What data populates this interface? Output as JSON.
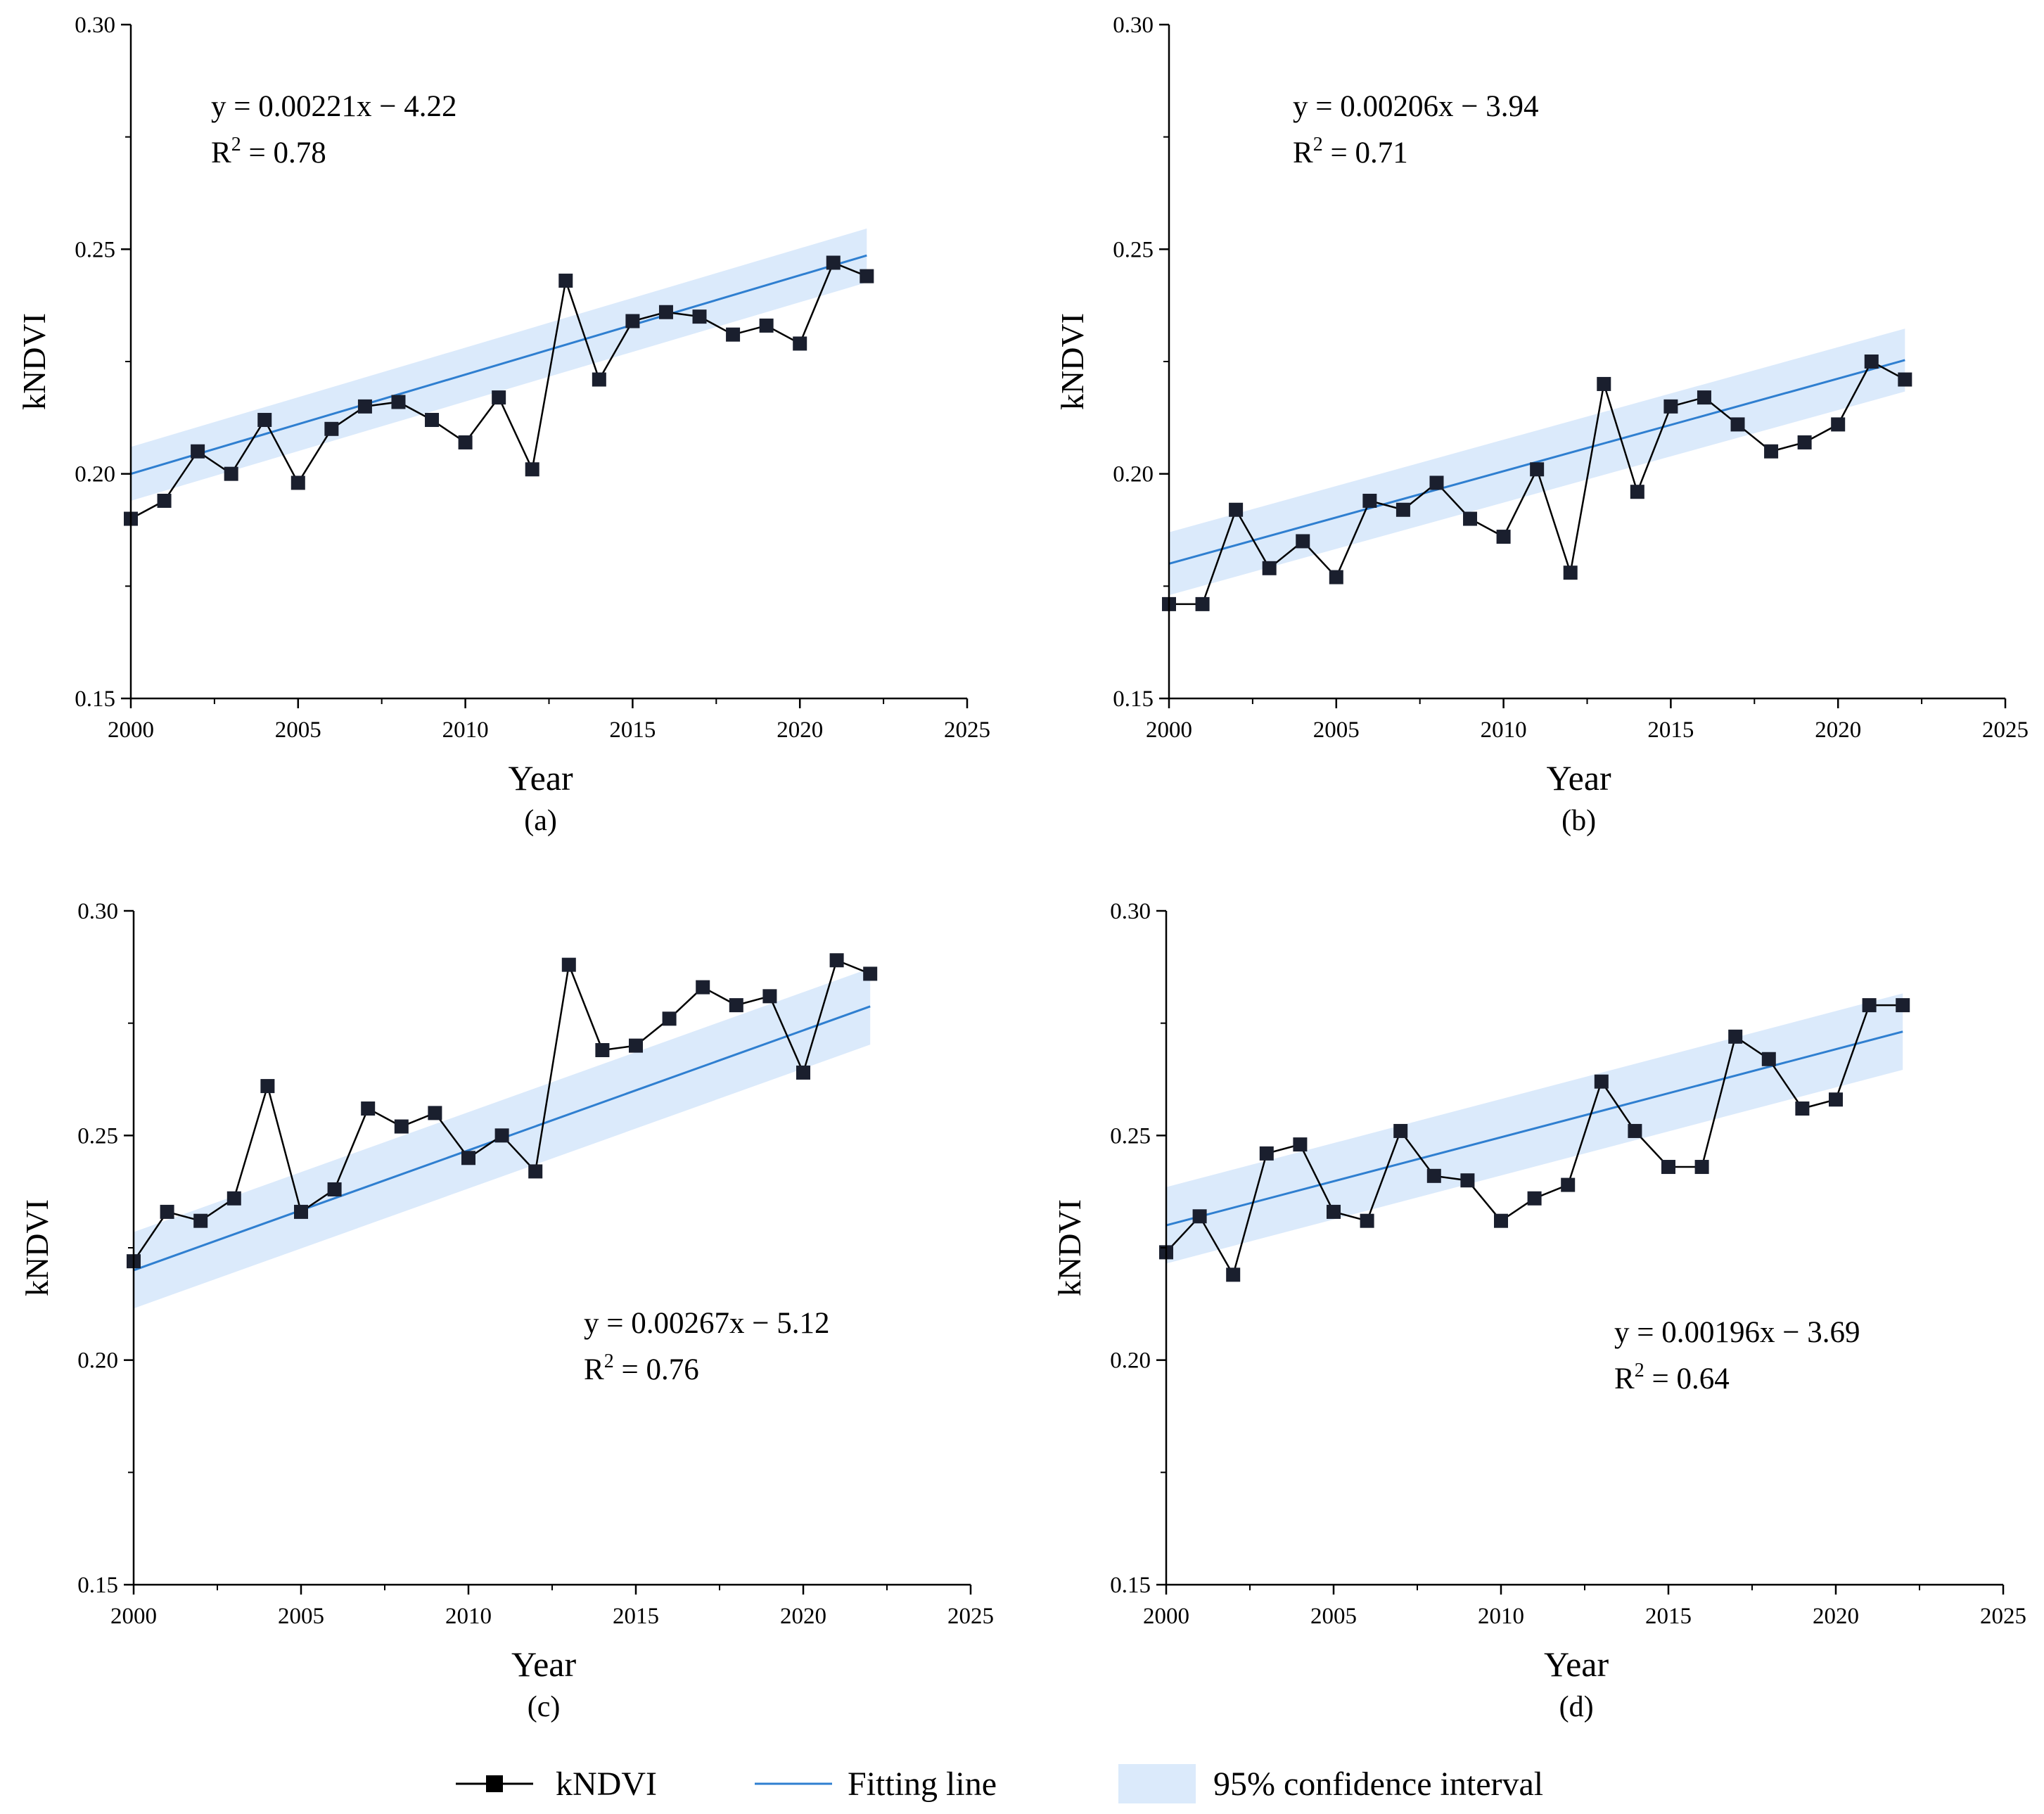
{
  "chart_data": [
    {
      "type": "line",
      "panel": "(a)",
      "title": "",
      "xlabel": "Year",
      "ylabel": "kNDVI",
      "xlim": [
        2000,
        2025
      ],
      "ylim": [
        0.15,
        0.3
      ],
      "xticks": [
        "2000",
        "2005",
        "2010",
        "2015",
        "2020",
        "2025"
      ],
      "yticks": [
        "0.15",
        "0.20",
        "0.25",
        "0.30"
      ],
      "x": [
        2000,
        2001,
        2002,
        2003,
        2004,
        2005,
        2006,
        2007,
        2008,
        2009,
        2010,
        2011,
        2012,
        2013,
        2014,
        2015,
        2016,
        2017,
        2018,
        2019,
        2020,
        2021,
        2022
      ],
      "values": [
        0.19,
        0.194,
        0.205,
        0.2,
        0.212,
        0.198,
        0.21,
        0.215,
        0.216,
        0.212,
        0.207,
        0.217,
        0.201,
        0.243,
        0.221,
        0.234,
        0.236,
        0.235,
        0.231,
        0.233,
        0.229,
        0.247,
        0.244
      ],
      "fit": {
        "slope": 0.00221,
        "intercept": -4.22,
        "ci_half_width_start": 0.006,
        "ci_half_width_end": 0.006
      },
      "equation": "y = 0.00221x − 4.22",
      "r2_prefix": "R",
      "r2_sup": "2",
      "r2_value": " = 0.78",
      "annotation_position": "top-left"
    },
    {
      "type": "line",
      "panel": "(b)",
      "title": "",
      "xlabel": "Year",
      "ylabel": "kNDVI",
      "xlim": [
        2000,
        2025
      ],
      "ylim": [
        0.15,
        0.3
      ],
      "xticks": [
        "2000",
        "2005",
        "2010",
        "2015",
        "2020",
        "2025"
      ],
      "yticks": [
        "0.15",
        "0.20",
        "0.25",
        "0.30"
      ],
      "x": [
        2000,
        2001,
        2002,
        2003,
        2004,
        2005,
        2006,
        2007,
        2008,
        2009,
        2010,
        2011,
        2012,
        2013,
        2014,
        2015,
        2016,
        2017,
        2018,
        2019,
        2020,
        2021,
        2022
      ],
      "values": [
        0.171,
        0.171,
        0.192,
        0.179,
        0.185,
        0.177,
        0.194,
        0.192,
        0.198,
        0.19,
        0.186,
        0.201,
        0.178,
        0.22,
        0.196,
        0.215,
        0.217,
        0.211,
        0.205,
        0.207,
        0.211,
        0.225,
        0.221
      ],
      "fit": {
        "slope": 0.00206,
        "intercept": -3.94,
        "ci_half_width_start": 0.007,
        "ci_half_width_end": 0.007
      },
      "equation": "y = 0.00206x − 3.94",
      "r2_prefix": "R",
      "r2_sup": "2",
      "r2_value": " = 0.71",
      "annotation_position": "top-left"
    },
    {
      "type": "line",
      "panel": "(c)",
      "title": "",
      "xlabel": "Year",
      "ylabel": "kNDVI",
      "xlim": [
        2000,
        2025
      ],
      "ylim": [
        0.15,
        0.3
      ],
      "xticks": [
        "2000",
        "2005",
        "2010",
        "2015",
        "2020",
        "2025"
      ],
      "yticks": [
        "0.15",
        "0.20",
        "0.25",
        "0.30"
      ],
      "x": [
        2000,
        2001,
        2002,
        2003,
        2004,
        2005,
        2006,
        2007,
        2008,
        2009,
        2010,
        2011,
        2012,
        2013,
        2014,
        2015,
        2016,
        2017,
        2018,
        2019,
        2020,
        2021,
        2022
      ],
      "values": [
        0.222,
        0.233,
        0.231,
        0.236,
        0.261,
        0.233,
        0.238,
        0.256,
        0.252,
        0.255,
        0.245,
        0.25,
        0.242,
        0.288,
        0.269,
        0.27,
        0.276,
        0.283,
        0.279,
        0.281,
        0.264,
        0.289,
        0.286
      ],
      "fit": {
        "slope": 0.00267,
        "intercept": -5.12,
        "ci_half_width_start": 0.0085,
        "ci_half_width_end": 0.0085
      },
      "equation": "y = 0.00267x − 5.12",
      "r2_prefix": "R",
      "r2_sup": "2",
      "r2_value": " = 0.76",
      "annotation_position": "bottom-right"
    },
    {
      "type": "line",
      "panel": "(d)",
      "title": "",
      "xlabel": "Year",
      "ylabel": "kNDVI",
      "xlim": [
        2000,
        2025
      ],
      "ylim": [
        0.15,
        0.3
      ],
      "xticks": [
        "2000",
        "2005",
        "2010",
        "2015",
        "2020",
        "2025"
      ],
      "yticks": [
        "0.15",
        "0.20",
        "0.25",
        "0.30"
      ],
      "x": [
        2000,
        2001,
        2002,
        2003,
        2004,
        2005,
        2006,
        2007,
        2008,
        2009,
        2010,
        2011,
        2012,
        2013,
        2014,
        2015,
        2016,
        2017,
        2018,
        2019,
        2020,
        2021,
        2022
      ],
      "values": [
        0.224,
        0.232,
        0.219,
        0.246,
        0.248,
        0.233,
        0.231,
        0.251,
        0.241,
        0.24,
        0.231,
        0.236,
        0.239,
        0.262,
        0.251,
        0.243,
        0.243,
        0.272,
        0.267,
        0.256,
        0.258,
        0.279,
        0.279
      ],
      "fit": {
        "slope": 0.00196,
        "intercept": -3.69,
        "ci_half_width_start": 0.0085,
        "ci_half_width_end": 0.0085
      },
      "equation": "y = 0.00196x − 3.69",
      "r2_prefix": "R",
      "r2_sup": "2",
      "r2_value": " = 0.64",
      "annotation_position": "bottom-right"
    }
  ],
  "legend": {
    "series_label": "kNDVI",
    "fit_label": "Fitting line",
    "ci_label": "95% confidence interval"
  },
  "colors": {
    "series": "#000000",
    "marker_fill": "#1a1f2e",
    "fit": "#2f7fd0",
    "ci": "#dbeafb",
    "axis": "#000000"
  }
}
